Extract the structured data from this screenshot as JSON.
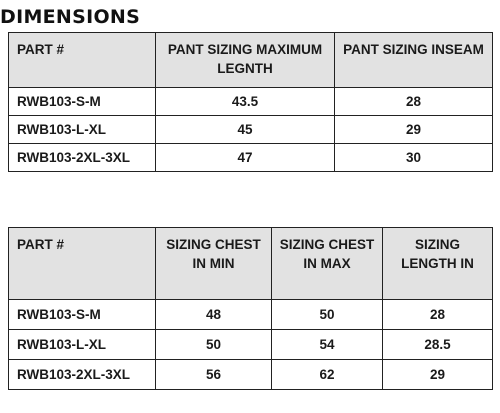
{
  "title": "DIMENSIONS",
  "table1": {
    "headers": [
      "PART #",
      "PANT SIZING MAXIMUM LEGNTH",
      "PANT SIZING INSEAM"
    ],
    "rows": [
      [
        "RWB103-S-M",
        "43.5",
        "28"
      ],
      [
        "RWB103-L-XL",
        "45",
        "29"
      ],
      [
        "RWB103-2XL-3XL",
        "47",
        "30"
      ]
    ]
  },
  "table2": {
    "headers": [
      "PART #",
      "SIZING CHEST IN MIN",
      "SIZING CHEST IN MAX",
      "SIZING LENGTH IN"
    ],
    "rows": [
      [
        "RWB103-S-M",
        "48",
        "50",
        "28"
      ],
      [
        "RWB103-L-XL",
        "50",
        "54",
        "28.5"
      ],
      [
        "RWB103-2XL-3XL",
        "56",
        "62",
        "29"
      ]
    ]
  }
}
